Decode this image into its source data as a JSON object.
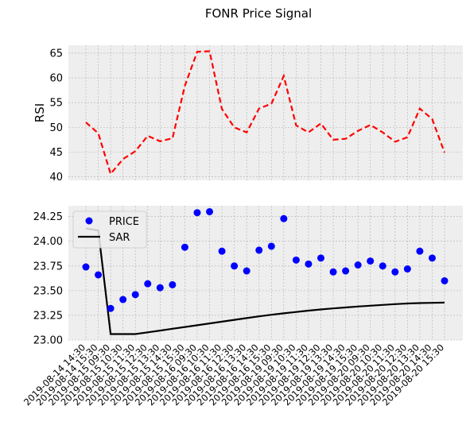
{
  "figure": {
    "title": "FONR Price Signal"
  },
  "chart_data": [
    {
      "type": "line",
      "title": "",
      "ylabel": "RSI",
      "xlabel": "",
      "ylim": [
        39.3,
        66.6
      ],
      "yticks": [
        40,
        45,
        50,
        55,
        60,
        65
      ],
      "grid": true,
      "series": [
        {
          "name": "",
          "color": "#ff0000",
          "style": "dashed",
          "values": [
            51.0,
            48.8,
            40.6,
            43.6,
            45.2,
            48.3,
            47.2,
            47.8,
            58.4,
            65.3,
            65.4,
            53.7,
            50.0,
            49.0,
            53.8,
            54.8,
            60.4,
            50.4,
            49.0,
            50.8,
            47.5,
            47.7,
            49.3,
            50.5,
            49.0,
            47.1,
            48.0,
            53.8,
            51.7,
            44.9
          ]
        }
      ]
    },
    {
      "type": "scatter",
      "title": "",
      "ylabel": "",
      "xlabel": "",
      "ylim": [
        23.0,
        24.36
      ],
      "yticks": [
        23.0,
        23.25,
        23.5,
        23.75,
        24.0,
        24.25
      ],
      "ytick_labels": [
        "23.00",
        "23.25",
        "23.50",
        "23.75",
        "24.00",
        "24.25"
      ],
      "grid": true,
      "legend_position": "top-left",
      "x": [
        "2019-08-14 14:30",
        "2019-08-14 15:30",
        "2019-08-15 09:30",
        "2019-08-15 10:30",
        "2019-08-15 11:30",
        "2019-08-15 12:30",
        "2019-08-15 13:30",
        "2019-08-15 14:30",
        "2019-08-15 15:30",
        "2019-08-16 09:30",
        "2019-08-16 10:30",
        "2019-08-16 11:30",
        "2019-08-16 12:30",
        "2019-08-16 13:30",
        "2019-08-16 14:30",
        "2019-08-16 15:30",
        "2019-08-19 09:30",
        "2019-08-19 10:30",
        "2019-08-19 11:30",
        "2019-08-19 12:30",
        "2019-08-19 13:30",
        "2019-08-19 14:30",
        "2019-08-19 15:30",
        "2019-08-20 09:30",
        "2019-08-20 10:30",
        "2019-08-20 11:30",
        "2019-08-20 12:30",
        "2019-08-20 13:30",
        "2019-08-20 14:30",
        "2019-08-20 15:30"
      ],
      "series": [
        {
          "name": "PRICE",
          "kind": "scatter",
          "color": "#0000ff",
          "values": [
            23.74,
            23.66,
            23.32,
            23.41,
            23.46,
            23.57,
            23.53,
            23.56,
            23.94,
            24.29,
            24.3,
            23.9,
            23.75,
            23.7,
            23.91,
            23.95,
            24.23,
            23.81,
            23.77,
            23.83,
            23.69,
            23.7,
            23.76,
            23.8,
            23.75,
            23.69,
            23.72,
            23.9,
            23.83,
            23.6
          ]
        },
        {
          "name": "SAR",
          "kind": "line",
          "color": "#000000",
          "values": [
            24.13,
            24.11,
            23.06,
            23.06,
            23.06,
            23.078,
            23.096,
            23.114,
            23.132,
            23.15,
            23.168,
            23.186,
            23.204,
            23.222,
            23.24,
            23.256,
            23.27,
            23.284,
            23.298,
            23.31,
            23.32,
            23.33,
            23.34,
            23.348,
            23.356,
            23.364,
            23.37,
            23.374,
            23.377,
            23.379
          ]
        }
      ]
    }
  ]
}
